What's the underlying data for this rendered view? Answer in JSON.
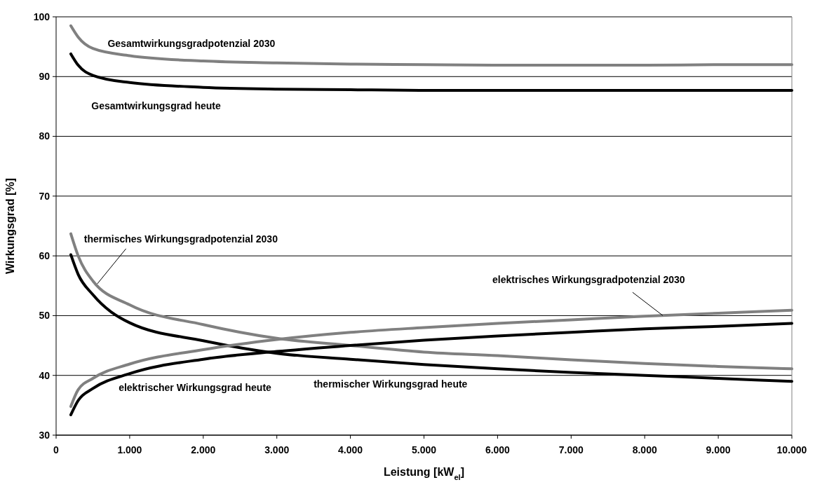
{
  "chart_data": {
    "type": "line",
    "xlabel": "Leistung [kW$_{el}$]",
    "ylabel": "Wirkungsgrad [%]",
    "x": [
      200,
      300,
      500,
      1000,
      2000,
      3000,
      4000,
      5000,
      6000,
      7000,
      8000,
      9000,
      10000
    ],
    "series": [
      {
        "name": "Gesamtwirkungsgradpotenzial 2030",
        "color": "#808080",
        "values": [
          98.5,
          96.6,
          94.7,
          93.5,
          92.6,
          92.3,
          92.1,
          92.0,
          91.9,
          91.9,
          91.9,
          92.0,
          92.0
        ]
      },
      {
        "name": "Gesamtwirkungsgrad heute",
        "color": "#000000",
        "values": [
          93.8,
          91.9,
          90.2,
          89.0,
          88.2,
          87.9,
          87.8,
          87.7,
          87.7,
          87.7,
          87.7,
          87.7,
          87.7
        ]
      },
      {
        "name": "thermisches Wirkungsgradpotenzial 2030",
        "color": "#808080",
        "values": [
          63.7,
          60.0,
          55.8,
          51.8,
          48.5,
          46.2,
          45.0,
          43.9,
          43.3,
          42.6,
          42.0,
          41.5,
          41.1
        ]
      },
      {
        "name": "thermischer Wirkungsgrad heute",
        "color": "#000000",
        "values": [
          60.2,
          56.9,
          53.5,
          48.8,
          45.8,
          43.7,
          42.7,
          41.8,
          41.1,
          40.5,
          40.0,
          39.5,
          39.0
        ]
      },
      {
        "name": "elektrisches Wirkungsgradpotenzial 2030",
        "color": "#808080",
        "values": [
          34.8,
          37.6,
          39.5,
          41.9,
          44.3,
          46.0,
          47.2,
          48.0,
          48.7,
          49.3,
          49.9,
          50.4,
          50.9
        ]
      },
      {
        "name": "elektrischer Wirkungsgrad heute",
        "color": "#000000",
        "values": [
          33.4,
          35.8,
          37.8,
          40.3,
          42.7,
          44.0,
          45.0,
          45.9,
          46.6,
          47.2,
          47.8,
          48.2,
          48.7
        ]
      }
    ],
    "xlim": [
      0,
      10000
    ],
    "xticks": [
      0,
      {
        "value": 1000,
        "label": "1.000"
      },
      {
        "value": 2000,
        "label": "2.000"
      },
      {
        "value": 3000,
        "label": "3.000"
      },
      {
        "value": 4000,
        "label": "4.000"
      },
      {
        "value": 5000,
        "label": "5.000"
      },
      {
        "value": 6000,
        "label": "6.000"
      },
      {
        "value": 7000,
        "label": "7.000"
      },
      {
        "value": 8000,
        "label": "8.000"
      },
      {
        "value": 9000,
        "label": "9.000"
      },
      {
        "value": 10000,
        "label": "10.000"
      }
    ],
    "ylim": [
      30,
      100
    ],
    "yticks": [
      30,
      40,
      50,
      60,
      70,
      80,
      90,
      100
    ],
    "grid": "y",
    "marker": "none",
    "line_style": "solid"
  }
}
